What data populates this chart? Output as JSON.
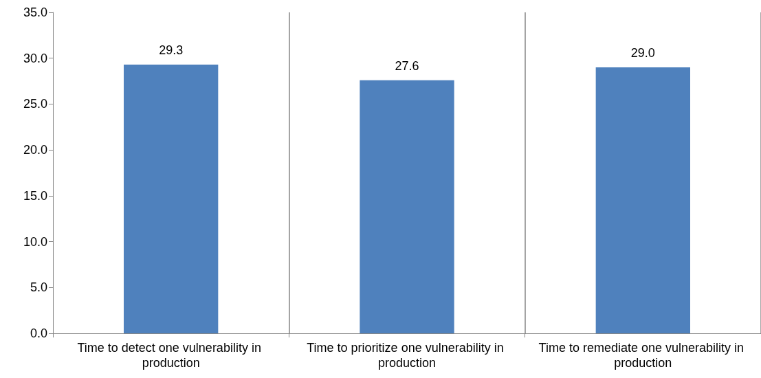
{
  "chart_data": {
    "type": "bar",
    "categories": [
      "Time to detect one vulnerability in production",
      "Time to prioritize one vulnerability in production",
      "Time to remediate one vulnerability in production"
    ],
    "values": [
      29.3,
      27.6,
      29.0
    ],
    "color": "#4f81bd",
    "ylim": [
      0,
      35
    ],
    "yticks": [
      {
        "value": 0,
        "label": "0.0"
      },
      {
        "value": 5,
        "label": "5.0"
      },
      {
        "value": 10,
        "label": "10.0"
      },
      {
        "value": 15,
        "label": "15.0"
      },
      {
        "value": 20,
        "label": "20.0"
      },
      {
        "value": 25,
        "label": "25.0"
      },
      {
        "value": 30,
        "label": "30.0"
      },
      {
        "value": 35,
        "label": "35.0"
      }
    ],
    "grid": "x",
    "value_labels": [
      "29.3",
      "27.6",
      "29.0"
    ]
  }
}
